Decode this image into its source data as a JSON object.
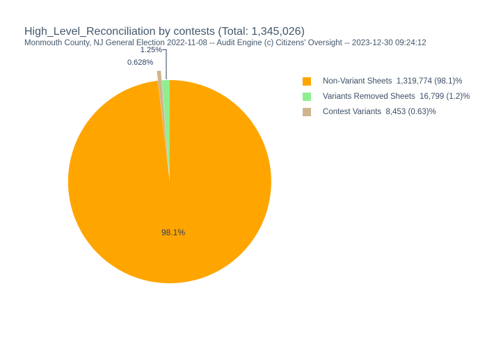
{
  "chart_data": {
    "type": "pie",
    "title": "High_Level_Reconciliation by contests (Total: 1,345,026)",
    "subtitle": "Monmouth County, NJ General Election 2022-11-08 -- Audit Engine (c) Citizens' Oversight -- 2023-12-30 09:24:12",
    "total": 1345026,
    "legend_position": "right",
    "slices": [
      {
        "name": "Non-Variant Sheets",
        "value": 1319774,
        "percent": 98.1,
        "pct_text": "98.1%",
        "legend_text": "Non-Variant Sheets  1,319,774 (98.1)%",
        "color": "#FFA500",
        "label_placement": "inside"
      },
      {
        "name": "Variants Removed Sheets",
        "value": 16799,
        "percent": 1.25,
        "pct_text": "1.25%",
        "legend_text": "Variants Removed Sheets  16,799 (1.2)%",
        "color": "#90EE90",
        "label_placement": "outside"
      },
      {
        "name": "Contest Variants",
        "value": 8453,
        "percent": 0.628,
        "pct_text": "0.628%",
        "legend_text": "Contest Variants  8,453 (0.63)%",
        "color": "#D2B48C",
        "label_placement": "outside",
        "exploded": true
      }
    ]
  },
  "colors": {
    "background": "#ffffff",
    "title_text": "#42576b",
    "label_text": "#2a3f5f",
    "legend_text": "#3b4f66",
    "leader_line": "#2a3f5f"
  }
}
